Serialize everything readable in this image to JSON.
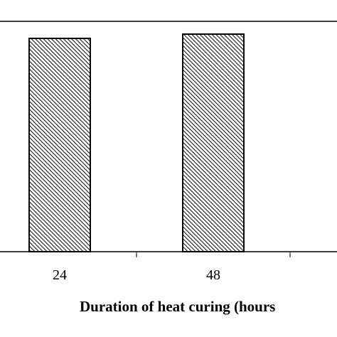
{
  "chart_data": {
    "type": "bar",
    "xlabel": "Duration of heat curing (hours",
    "categories": [
      "24",
      "48"
    ],
    "values": [
      100,
      102
    ],
    "ylim": [
      0,
      108
    ],
    "grid": false,
    "legend": "none",
    "colors": {
      "bar_fill": "#ffffff",
      "bar_hatch": "#1a1a1a",
      "bar_edge": "#000000",
      "axis": "#000000"
    }
  }
}
